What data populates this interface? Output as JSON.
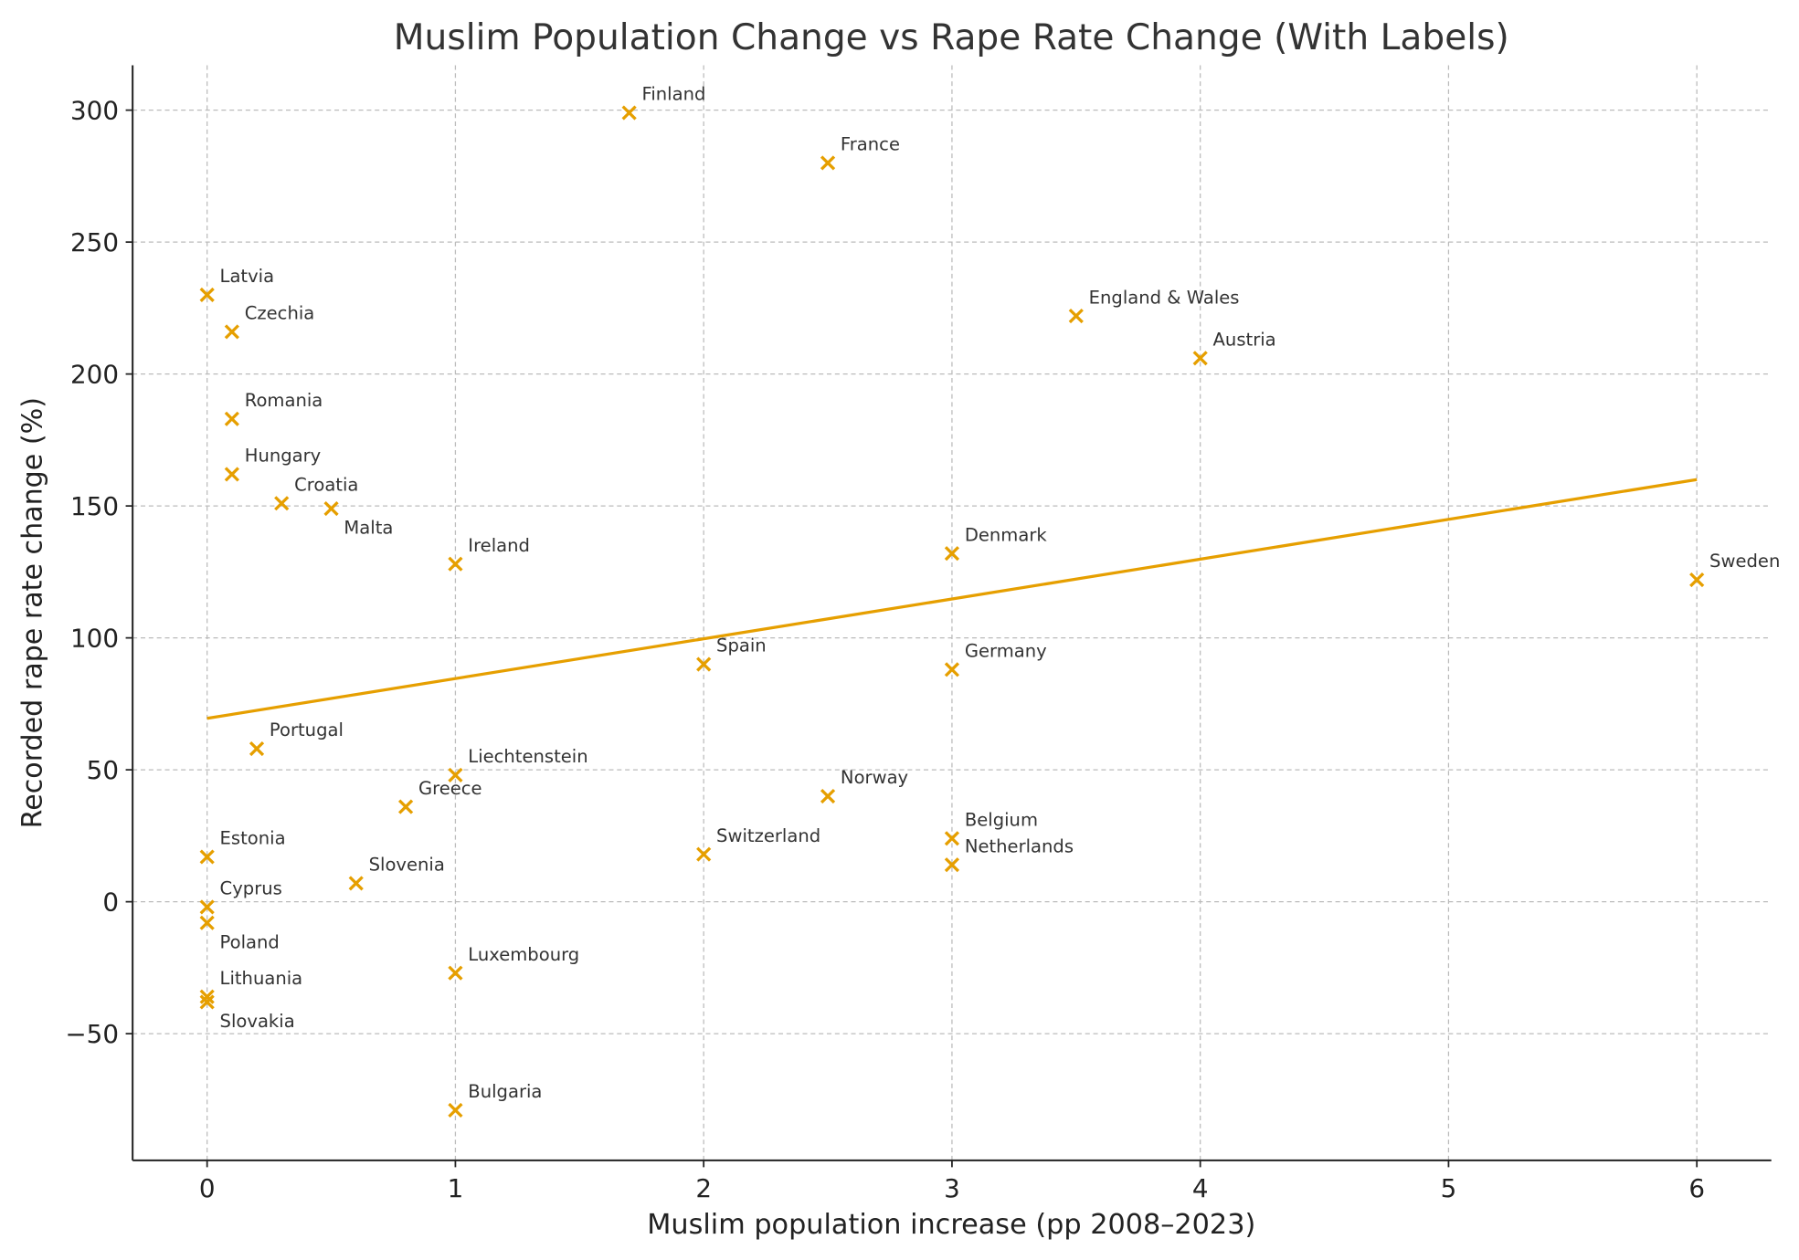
{
  "chart_data": {
    "type": "scatter",
    "title": "Muslim Population Change vs Rape Rate Change (With Labels)",
    "xlabel": "Muslim population increase (pp 2008–2023)",
    "ylabel": "Recorded rape rate change (%)",
    "xlim": [
      -0.3,
      6.3
    ],
    "ylim": [
      -98,
      317
    ],
    "xticks": [
      "0",
      "1",
      "2",
      "3",
      "4",
      "5",
      "6"
    ],
    "yticks": [
      "−50",
      "0",
      "50",
      "100",
      "150",
      "200",
      "250",
      "300"
    ],
    "grid": true,
    "marker": "x",
    "color": "#E69F00",
    "points": [
      {
        "label": "Finland",
        "x": 1.7,
        "y": 299
      },
      {
        "label": "France",
        "x": 2.5,
        "y": 280
      },
      {
        "label": "Latvia",
        "x": 0,
        "y": 230
      },
      {
        "label": "Czechia",
        "x": 0.1,
        "y": 216
      },
      {
        "label": "England & Wales",
        "x": 3.5,
        "y": 222
      },
      {
        "label": "Austria",
        "x": 4,
        "y": 206
      },
      {
        "label": "Romania",
        "x": 0.1,
        "y": 183
      },
      {
        "label": "Hungary",
        "x": 0.1,
        "y": 162
      },
      {
        "label": "Croatia",
        "x": 0.3,
        "y": 151
      },
      {
        "label": "Malta",
        "x": 0.5,
        "y": 149
      },
      {
        "label": "Ireland",
        "x": 1,
        "y": 128
      },
      {
        "label": "Denmark",
        "x": 3,
        "y": 132
      },
      {
        "label": "Sweden",
        "x": 6,
        "y": 122
      },
      {
        "label": "Spain",
        "x": 2,
        "y": 90
      },
      {
        "label": "Germany",
        "x": 3,
        "y": 88
      },
      {
        "label": "Portugal",
        "x": 0.2,
        "y": 58
      },
      {
        "label": "Liechtenstein",
        "x": 1,
        "y": 48
      },
      {
        "label": "Greece",
        "x": 0.8,
        "y": 36
      },
      {
        "label": "Norway",
        "x": 2.5,
        "y": 40
      },
      {
        "label": "Belgium",
        "x": 3,
        "y": 24
      },
      {
        "label": "Netherlands",
        "x": 3,
        "y": 14
      },
      {
        "label": "Switzerland",
        "x": 2,
        "y": 18
      },
      {
        "label": "Estonia",
        "x": 0,
        "y": 17
      },
      {
        "label": "Slovenia",
        "x": 0.6,
        "y": 7
      },
      {
        "label": "Cyprus",
        "x": 0,
        "y": -2
      },
      {
        "label": "Poland",
        "x": 0,
        "y": -8
      },
      {
        "label": "Luxembourg",
        "x": 1,
        "y": -27
      },
      {
        "label": "Lithuania",
        "x": 0,
        "y": -36
      },
      {
        "label": "Slovakia",
        "x": 0,
        "y": -38
      },
      {
        "label": "Bulgaria",
        "x": 1,
        "y": -79
      }
    ],
    "trendline": {
      "x": [
        0,
        6
      ],
      "y": [
        69.5,
        160
      ]
    }
  }
}
